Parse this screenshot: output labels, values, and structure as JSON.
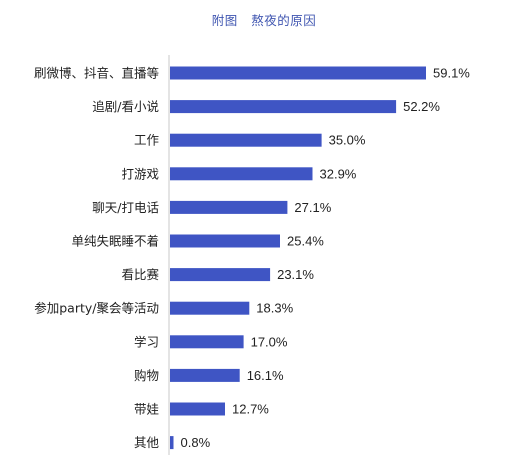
{
  "chart_data": {
    "type": "bar",
    "orientation": "horizontal",
    "title": "附图   熬夜的原因",
    "categories": [
      "刷微博、抖音、直播等",
      "追剧/看小说",
      "工作",
      "打游戏",
      "聊天/打电话",
      "单纯失眠睡不着",
      "看比赛",
      "参加party/聚会等活动",
      "学习",
      "购物",
      "带娃",
      "其他"
    ],
    "values": [
      59.1,
      52.2,
      35.0,
      32.9,
      27.1,
      25.4,
      23.1,
      18.3,
      17.0,
      16.1,
      12.7,
      0.8
    ],
    "value_labels": [
      "59.1%",
      "52.2%",
      "35.0%",
      "32.9%",
      "27.1%",
      "25.4%",
      "23.1%",
      "18.3%",
      "17.0%",
      "16.1%",
      "12.7%",
      "0.8%"
    ],
    "unit": "%",
    "xlim": [
      0,
      62
    ],
    "grid": false,
    "legend": "none",
    "colors": {
      "bar": "#3f55c4",
      "title": "#3f55b0",
      "axis": "#c8c8c8",
      "text": "#222222"
    }
  }
}
